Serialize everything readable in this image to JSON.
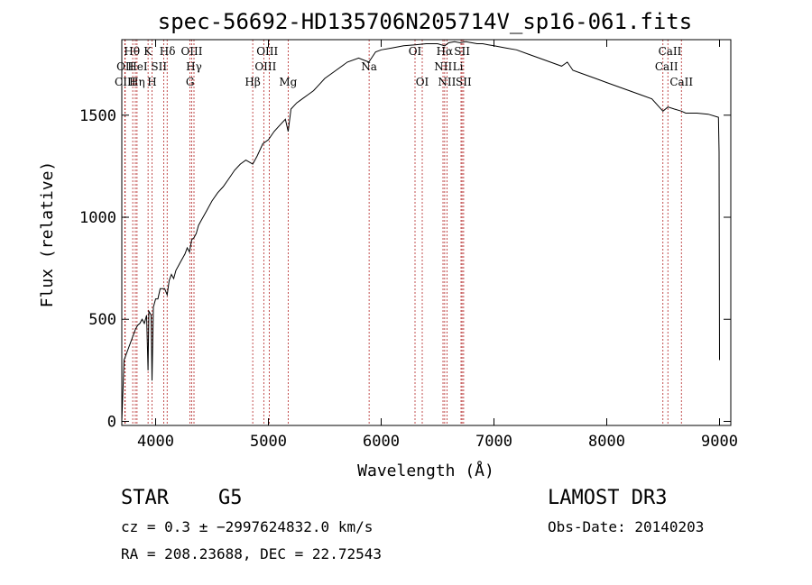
{
  "chart_data": {
    "type": "line",
    "title": "spec-56692-HD135706N205714V_sp16-061.fits",
    "xlabel": "Wavelength (Å)",
    "ylabel": "Flux (relative)",
    "xlim": [
      3700,
      9100
    ],
    "ylim": [
      -20,
      1870
    ],
    "x_ticks": [
      4000,
      5000,
      6000,
      7000,
      8000,
      9000
    ],
    "y_ticks": [
      0,
      500,
      1000,
      1500
    ],
    "x_tick_labels": [
      "4000",
      "5000",
      "6000",
      "7000",
      "8000",
      "9000"
    ],
    "y_tick_labels": [
      "0",
      "500",
      "1000",
      "1500"
    ],
    "series": [
      {
        "name": "spectrum",
        "color": "#000000",
        "x": [
          3700,
          3720,
          3740,
          3760,
          3780,
          3800,
          3820,
          3840,
          3860,
          3880,
          3900,
          3920,
          3933,
          3940,
          3960,
          3968,
          3980,
          4000,
          4020,
          4040,
          4060,
          4080,
          4102,
          4120,
          4140,
          4160,
          4180,
          4200,
          4220,
          4240,
          4260,
          4280,
          4300,
          4320,
          4340,
          4360,
          4380,
          4400,
          4450,
          4500,
          4550,
          4600,
          4650,
          4700,
          4750,
          4800,
          4861,
          4900,
          4950,
          5000,
          5050,
          5100,
          5150,
          5175,
          5200,
          5250,
          5300,
          5350,
          5400,
          5450,
          5500,
          5600,
          5700,
          5800,
          5890,
          5950,
          6000,
          6100,
          6200,
          6300,
          6400,
          6500,
          6563,
          6600,
          6650,
          6700,
          6750,
          6800,
          6850,
          6900,
          6950,
          7000,
          7100,
          7200,
          7300,
          7400,
          7500,
          7600,
          7650,
          7700,
          7800,
          7900,
          8000,
          8100,
          8200,
          8300,
          8400,
          8498,
          8542,
          8600,
          8662,
          8700,
          8800,
          8900,
          8990,
          8996,
          9000
        ],
        "values": [
          0,
          300,
          330,
          360,
          390,
          420,
          450,
          470,
          480,
          500,
          480,
          520,
          250,
          540,
          520,
          200,
          560,
          600,
          600,
          650,
          650,
          650,
          620,
          690,
          720,
          700,
          740,
          760,
          780,
          800,
          820,
          850,
          830,
          890,
          900,
          920,
          960,
          980,
          1030,
          1080,
          1120,
          1150,
          1190,
          1230,
          1260,
          1280,
          1260,
          1300,
          1360,
          1380,
          1420,
          1450,
          1480,
          1420,
          1530,
          1560,
          1580,
          1600,
          1620,
          1650,
          1680,
          1720,
          1760,
          1780,
          1760,
          1810,
          1820,
          1830,
          1840,
          1845,
          1850,
          1850,
          1840,
          1855,
          1860,
          1855,
          1860,
          1855,
          1850,
          1850,
          1845,
          1840,
          1830,
          1820,
          1800,
          1780,
          1760,
          1740,
          1760,
          1720,
          1700,
          1680,
          1660,
          1640,
          1620,
          1600,
          1580,
          1520,
          1540,
          1530,
          1520,
          1510,
          1510,
          1505,
          1490,
          1320,
          300
        ]
      }
    ],
    "lines": [
      {
        "name": "Hθ",
        "wavelength": 3797
      },
      {
        "name": "OII",
        "wavelength": 3727
      },
      {
        "name": "CIII",
        "wavelength": 3730
      },
      {
        "name": "HeI",
        "wavelength": 3820
      },
      {
        "name": "Hη",
        "wavelength": 3835
      },
      {
        "name": "K",
        "wavelength": 3933
      },
      {
        "name": "H",
        "wavelength": 3968
      },
      {
        "name": "SII",
        "wavelength": 4072
      },
      {
        "name": "Hδ",
        "wavelength": 4102
      },
      {
        "name": "OIII",
        "wavelength": 4320
      },
      {
        "name": "Hγ",
        "wavelength": 4340
      },
      {
        "name": "G",
        "wavelength": 4305
      },
      {
        "name": "Hβ",
        "wavelength": 4861
      },
      {
        "name": "OIII",
        "wavelength": 4959
      },
      {
        "name": "OIII",
        "wavelength": 5007
      },
      {
        "name": "Mg",
        "wavelength": 5175
      },
      {
        "name": "Na",
        "wavelength": 5893
      },
      {
        "name": "OI",
        "wavelength": 6300
      },
      {
        "name": "OI",
        "wavelength": 6364
      },
      {
        "name": "Hα",
        "wavelength": 6563
      },
      {
        "name": "NII",
        "wavelength": 6548
      },
      {
        "name": "NII",
        "wavelength": 6583
      },
      {
        "name": "SII",
        "wavelength": 6717
      },
      {
        "name": "Li",
        "wavelength": 6708
      },
      {
        "name": "SII",
        "wavelength": 6731
      },
      {
        "name": "CaII",
        "wavelength": 8498
      },
      {
        "name": "CaII",
        "wavelength": 8542
      },
      {
        "name": "CaII",
        "wavelength": 8662
      }
    ],
    "line_labels": [
      {
        "text": "Hθ",
        "x": 3790,
        "row": 1
      },
      {
        "text": "K",
        "x": 3930,
        "row": 1
      },
      {
        "text": "Hδ",
        "x": 4105,
        "row": 1
      },
      {
        "text": "OIII",
        "x": 4320,
        "row": 1
      },
      {
        "text": "OIII",
        "x": 4990,
        "row": 1
      },
      {
        "text": "OI",
        "x": 6300,
        "row": 1
      },
      {
        "text": "Hα",
        "x": 6563,
        "row": 1
      },
      {
        "text": "SII",
        "x": 6717,
        "row": 1
      },
      {
        "text": "CaII",
        "x": 8560,
        "row": 1
      },
      {
        "text": "OII",
        "x": 3730,
        "row": 2
      },
      {
        "text": "HeI",
        "x": 3840,
        "row": 2
      },
      {
        "text": "SII",
        "x": 4030,
        "row": 2
      },
      {
        "text": "Hγ",
        "x": 4340,
        "row": 2
      },
      {
        "text": "OIII",
        "x": 4975,
        "row": 2
      },
      {
        "text": "Na",
        "x": 5893,
        "row": 2
      },
      {
        "text": "NII",
        "x": 6550,
        "row": 2
      },
      {
        "text": "Li",
        "x": 6680,
        "row": 2
      },
      {
        "text": "CaII",
        "x": 8530,
        "row": 2
      },
      {
        "text": "CIII",
        "x": 3730,
        "row": 3
      },
      {
        "text": "Hη",
        "x": 3835,
        "row": 3
      },
      {
        "text": "H",
        "x": 3968,
        "row": 3
      },
      {
        "text": "G",
        "x": 4305,
        "row": 3
      },
      {
        "text": "Hβ",
        "x": 4861,
        "row": 3
      },
      {
        "text": "Mg",
        "x": 5175,
        "row": 3
      },
      {
        "text": "OI",
        "x": 6364,
        "row": 3
      },
      {
        "text": "NII",
        "x": 6583,
        "row": 3
      },
      {
        "text": "SII",
        "x": 6731,
        "row": 3
      },
      {
        "text": "CaII",
        "x": 8662,
        "row": 3
      }
    ]
  },
  "info": {
    "object_type": "STAR",
    "subclass": "G5",
    "survey": "LAMOST DR3",
    "redshift": "cz = 0.3 ± −2997624832.0 km/s",
    "obs_date": "Obs-Date: 20140203",
    "coords": "RA = 208.23688, DEC =  22.72543"
  },
  "colors": {
    "spectrum": "#000000",
    "line_markers": "#b22222",
    "axis": "#000000"
  }
}
